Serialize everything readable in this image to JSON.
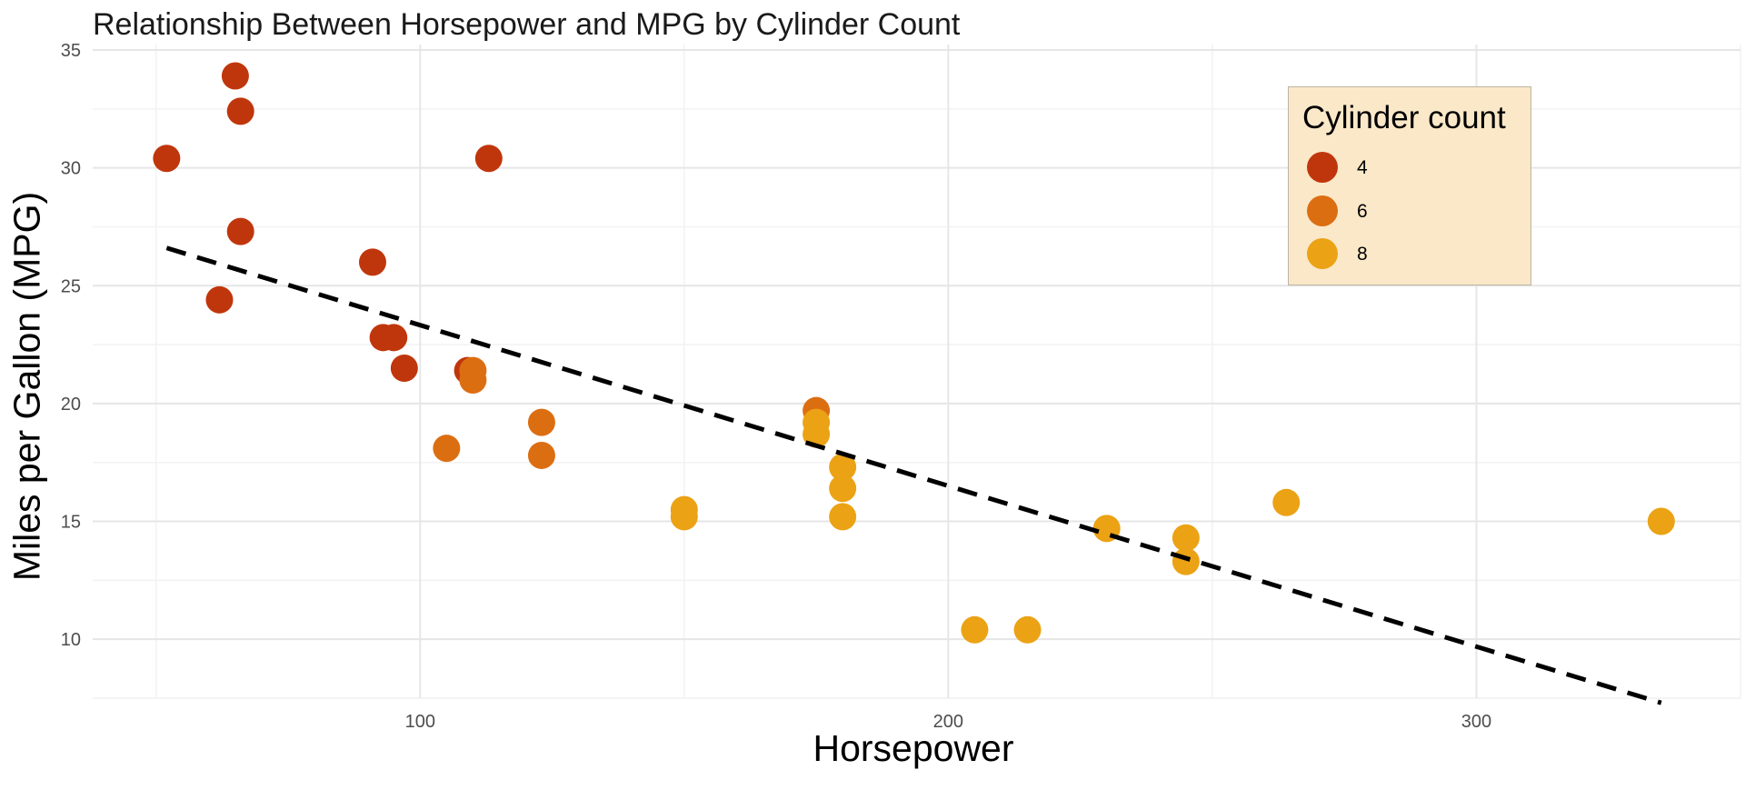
{
  "chart_data": {
    "type": "scatter",
    "title": "Relationship Between Horsepower and MPG by Cylinder Count",
    "xlabel": "Horsepower",
    "ylabel": "Miles per Gallon (MPG)",
    "xlim": [
      38,
      350
    ],
    "ylim": [
      7.5,
      35
    ],
    "x_ticks": [
      100,
      200,
      300
    ],
    "y_ticks": [
      10,
      15,
      20,
      25,
      30,
      35
    ],
    "grid": true,
    "legend": {
      "title": "Cylinder count",
      "position": "top-right",
      "entries": [
        {
          "label": "4",
          "color": "#c0360c"
        },
        {
          "label": "6",
          "color": "#dc6e12"
        },
        {
          "label": "8",
          "color": "#eba214"
        }
      ]
    },
    "series": [
      {
        "name": "4",
        "color": "#c0360c",
        "points": [
          {
            "x": 52,
            "y": 30.4
          },
          {
            "x": 65,
            "y": 33.9
          },
          {
            "x": 66,
            "y": 32.4
          },
          {
            "x": 66,
            "y": 27.3
          },
          {
            "x": 62,
            "y": 24.4
          },
          {
            "x": 91,
            "y": 26.0
          },
          {
            "x": 93,
            "y": 22.8
          },
          {
            "x": 95,
            "y": 22.8
          },
          {
            "x": 97,
            "y": 21.5
          },
          {
            "x": 109,
            "y": 21.4
          },
          {
            "x": 113,
            "y": 30.4
          }
        ]
      },
      {
        "name": "6",
        "color": "#dc6e12",
        "points": [
          {
            "x": 110,
            "y": 21.0
          },
          {
            "x": 110,
            "y": 21.4
          },
          {
            "x": 105,
            "y": 18.1
          },
          {
            "x": 123,
            "y": 19.2
          },
          {
            "x": 123,
            "y": 17.8
          },
          {
            "x": 175,
            "y": 19.7
          }
        ]
      },
      {
        "name": "8",
        "color": "#eba214",
        "points": [
          {
            "x": 150,
            "y": 15.5
          },
          {
            "x": 150,
            "y": 15.2
          },
          {
            "x": 175,
            "y": 18.7
          },
          {
            "x": 175,
            "y": 19.2
          },
          {
            "x": 180,
            "y": 17.3
          },
          {
            "x": 180,
            "y": 16.4
          },
          {
            "x": 180,
            "y": 15.2
          },
          {
            "x": 205,
            "y": 10.4
          },
          {
            "x": 215,
            "y": 10.4
          },
          {
            "x": 230,
            "y": 14.7
          },
          {
            "x": 245,
            "y": 14.3
          },
          {
            "x": 245,
            "y": 13.3
          },
          {
            "x": 264,
            "y": 15.8
          },
          {
            "x": 335,
            "y": 15.0
          }
        ]
      }
    ],
    "trend_line": {
      "style": "dashed",
      "color": "#000000",
      "x": [
        52,
        335
      ],
      "y": [
        26.6,
        7.3
      ]
    }
  }
}
